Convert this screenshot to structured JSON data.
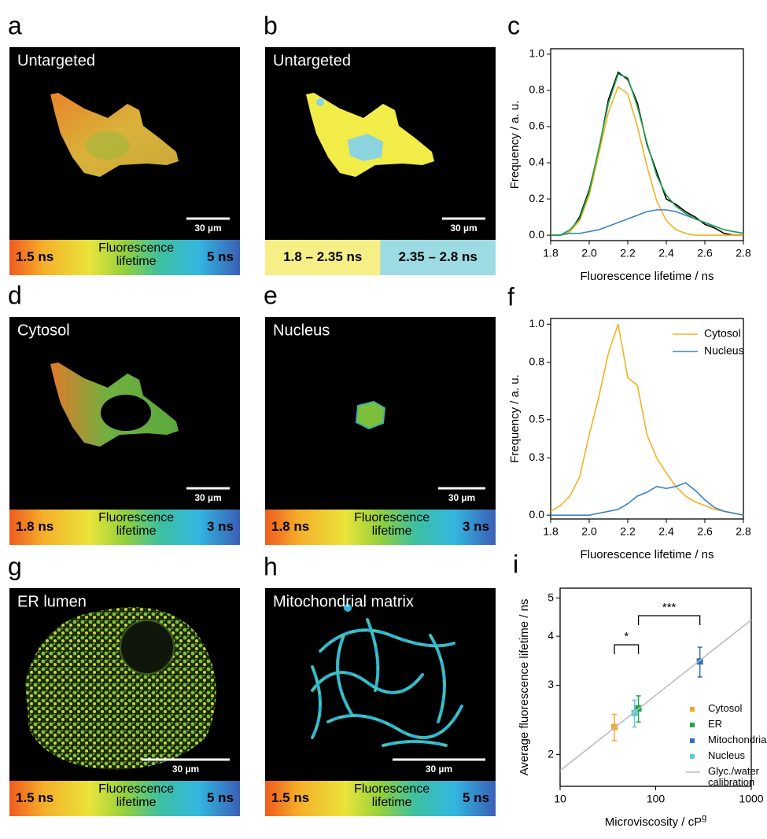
{
  "panels": [
    {
      "label": "a",
      "title": "Untargeted",
      "scale": "30 µm",
      "colorbar": [
        "1.5 ns",
        "Fluorescence lifetime",
        "5 ns"
      ]
    },
    {
      "label": "b",
      "title": "Untargeted",
      "scale": "30 µm",
      "bins": [
        "1.8 – 2.35 ns",
        "2.35 – 2.8 ns"
      ]
    },
    {
      "label": "d",
      "title": "Cytosol",
      "scale": "30 µm",
      "colorbar": [
        "1.8 ns",
        "Fluorescence lifetime",
        "3 ns"
      ]
    },
    {
      "label": "e",
      "title": "Nucleus",
      "scale": "30 µm",
      "colorbar": [
        "1.8 ns",
        "Fluorescence lifetime",
        "3 ns"
      ]
    },
    {
      "label": "g",
      "title": "ER lumen",
      "scale": "30 µm",
      "colorbar": [
        "1.5 ns",
        "Fluorescence lifetime",
        "5 ns"
      ]
    },
    {
      "label": "h",
      "title": "Mitochondrial matrix",
      "scale": "30 µm",
      "colorbar": [
        "1.5 ns",
        "Fluorescence lifetime",
        "5 ns"
      ]
    }
  ],
  "chart_data": [
    {
      "type": "line",
      "label": "c",
      "xlabel": "Fluorescence lifetime / ns",
      "ylabel": "Frequency / a. u.",
      "xlim": [
        1.8,
        2.8
      ],
      "xticks": [
        1.8,
        {
          "value": 2,
          "label": "2.0"
        },
        2.2,
        2.4,
        2.6,
        2.8
      ],
      "ylim": [
        -0.03,
        1.03
      ],
      "yticks": [
        {
          "value": 0,
          "label": "0.0"
        },
        0.2,
        0.4,
        0.6,
        0.8,
        {
          "value": 1,
          "label": "1.0"
        }
      ],
      "x": [
        1.8,
        1.85,
        1.9,
        1.95,
        2.0,
        2.05,
        2.1,
        2.15,
        2.2,
        2.25,
        2.3,
        2.35,
        2.4,
        2.45,
        2.5,
        2.55,
        2.6,
        2.65,
        2.7,
        2.75,
        2.8
      ],
      "series": [
        {
          "color": "#000000",
          "values": [
            0,
            0,
            0.02,
            0.1,
            0.25,
            0.47,
            0.75,
            0.9,
            0.86,
            0.73,
            0.5,
            0.35,
            0.2,
            0.17,
            0.13,
            0.1,
            0.06,
            0.04,
            0.01,
            0,
            0
          ]
        },
        {
          "color": "#f0b323",
          "values": [
            0,
            0,
            0.02,
            0.08,
            0.22,
            0.45,
            0.68,
            0.82,
            0.78,
            0.6,
            0.38,
            0.19,
            0.08,
            0.03,
            0.01,
            0,
            0,
            0,
            0,
            0,
            0
          ]
        },
        {
          "color": "#3a84c9",
          "values": [
            0,
            0,
            0.01,
            0.01,
            0.02,
            0.03,
            0.05,
            0.07,
            0.09,
            0.11,
            0.13,
            0.14,
            0.14,
            0.13,
            0.11,
            0.09,
            0.07,
            0.05,
            0.03,
            0.02,
            0.01
          ]
        },
        {
          "color": "#1fa34a",
          "values": [
            0,
            0,
            0.03,
            0.09,
            0.24,
            0.48,
            0.73,
            0.89,
            0.87,
            0.71,
            0.51,
            0.33,
            0.22,
            0.16,
            0.12,
            0.09,
            0.07,
            0.05,
            0.03,
            0.02,
            0.01
          ]
        }
      ]
    },
    {
      "type": "line",
      "label": "f",
      "xlabel": "Fluorescence lifetime / ns",
      "ylabel": "Frequency / a. u.",
      "legend": "upper right",
      "xlim": [
        1.8,
        2.8
      ],
      "xticks": [
        1.8,
        {
          "value": 2,
          "label": "2.0"
        },
        2.2,
        2.4,
        2.6,
        2.8
      ],
      "ylim": [
        -0.02,
        1.03
      ],
      "yticks": [
        {
          "value": 0,
          "label": "0.0"
        },
        0.3,
        0.5,
        0.8,
        {
          "value": 1,
          "label": "1.0"
        }
      ],
      "x": [
        1.8,
        1.85,
        1.9,
        1.95,
        2.0,
        2.05,
        2.1,
        2.15,
        2.2,
        2.25,
        2.3,
        2.35,
        2.4,
        2.45,
        2.5,
        2.55,
        2.6,
        2.65,
        2.7,
        2.75,
        2.8
      ],
      "series": [
        {
          "name": "Cytosol",
          "color": "#f0b323",
          "values": [
            0.02,
            0.05,
            0.1,
            0.2,
            0.42,
            0.62,
            0.85,
            1.0,
            0.72,
            0.68,
            0.42,
            0.3,
            0.22,
            0.15,
            0.1,
            0.07,
            0.05,
            0.03,
            0.02,
            0.01,
            0
          ]
        },
        {
          "name": "Nucleus",
          "color": "#3a84c9",
          "values": [
            0,
            0,
            0,
            0,
            0,
            0.01,
            0.02,
            0.03,
            0.06,
            0.1,
            0.12,
            0.15,
            0.14,
            0.15,
            0.17,
            0.13,
            0.08,
            0.04,
            0.02,
            0.01,
            0
          ]
        }
      ]
    },
    {
      "type": "scatter",
      "label": "i",
      "xlabel": "Microviscosity / cP",
      "xlabel_sup": "g",
      "ylabel": "Average fluorescence lifetime / ns",
      "xlog": true,
      "ylog": true,
      "xlim": [
        10,
        1000
      ],
      "xticks": [
        10,
        100,
        1000
      ],
      "ylim": [
        1.66,
        5.3
      ],
      "yticks": [
        2,
        3,
        4,
        5
      ],
      "annotations": [
        "*",
        "***"
      ],
      "series": [
        {
          "name": "Cytosol",
          "color": "#f5a623",
          "x": [
            37
          ],
          "values": [
            2.35
          ],
          "errors": [
            0.18
          ]
        },
        {
          "name": "ER",
          "color": "#1fa34a",
          "x": [
            66
          ],
          "values": [
            2.62
          ],
          "errors": [
            0.2
          ]
        },
        {
          "name": "Mitochondria",
          "color": "#2f6fbf",
          "x": [
            290
          ],
          "values": [
            3.45
          ],
          "errors": [
            0.3
          ]
        },
        {
          "name": "Nucleus",
          "color": "#5bc8dc",
          "x": [
            60
          ],
          "values": [
            2.55
          ],
          "errors": [
            0.2
          ]
        },
        {
          "name": "Glyc./water calibration",
          "type": "line",
          "color": "#bdbdbd",
          "x": [
            10,
            1000
          ],
          "values": [
            1.82,
            4.4
          ]
        }
      ]
    }
  ]
}
